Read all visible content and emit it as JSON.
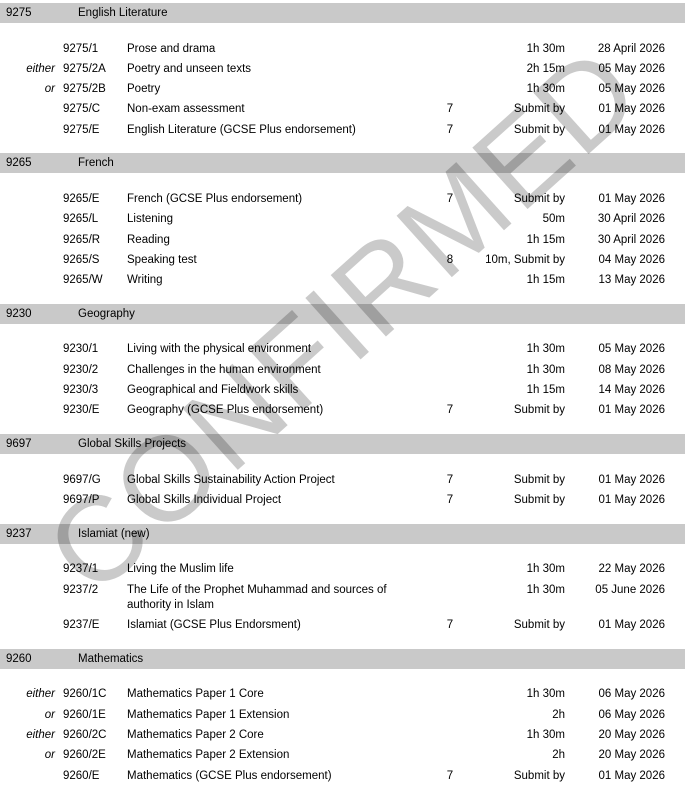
{
  "watermark": {
    "text": "CONFIRMED"
  },
  "colors": {
    "section_bar": "#c9c9c9",
    "watermark": "#cacaca",
    "text": "#000000"
  },
  "columns": {
    "prefix": "either/or",
    "code": "paper code",
    "title": "paper title",
    "count": "key/number",
    "duration": "duration or submission",
    "date": "date"
  },
  "sections": [
    {
      "code": "9275",
      "title": "English Literature",
      "rows": [
        {
          "prefix": "",
          "code": "9275/1",
          "title": "Prose and drama",
          "num": "",
          "duration": "1h 30m",
          "date": "28 April 2026"
        },
        {
          "prefix": "either",
          "code": "9275/2A",
          "title": "Poetry and unseen texts",
          "num": "",
          "duration": "2h 15m",
          "date": "05 May 2026"
        },
        {
          "prefix": "or",
          "code": "9275/2B",
          "title": "Poetry",
          "num": "",
          "duration": "1h 30m",
          "date": "05 May 2026"
        },
        {
          "prefix": "",
          "code": "9275/C",
          "title": "Non-exam assessment",
          "num": "7",
          "duration": "Submit by",
          "date": "01 May 2026"
        },
        {
          "prefix": "",
          "code": "9275/E",
          "title": "English Literature (GCSE Plus endorsement)",
          "num": "7",
          "duration": "Submit by",
          "date": "01 May 2026"
        }
      ]
    },
    {
      "code": "9265",
      "title": "French",
      "rows": [
        {
          "prefix": "",
          "code": "9265/E",
          "title": "French (GCSE Plus endorsement)",
          "num": "7",
          "duration": "Submit by",
          "date": "01 May 2026"
        },
        {
          "prefix": "",
          "code": "9265/L",
          "title": "Listening",
          "num": "",
          "duration": "50m",
          "date": "30 April 2026"
        },
        {
          "prefix": "",
          "code": "9265/R",
          "title": "Reading",
          "num": "",
          "duration": "1h 15m",
          "date": "30 April 2026"
        },
        {
          "prefix": "",
          "code": "9265/S",
          "title": "Speaking test",
          "num": "8",
          "duration": "10m, Submit by",
          "date": "04 May 2026"
        },
        {
          "prefix": "",
          "code": "9265/W",
          "title": "Writing",
          "num": "",
          "duration": "1h 15m",
          "date": "13 May 2026"
        }
      ]
    },
    {
      "code": "9230",
      "title": "Geography",
      "rows": [
        {
          "prefix": "",
          "code": "9230/1",
          "title": "Living with the physical environment",
          "num": "",
          "duration": "1h 30m",
          "date": "05 May 2026"
        },
        {
          "prefix": "",
          "code": "9230/2",
          "title": "Challenges in the human environment",
          "num": "",
          "duration": "1h 30m",
          "date": "08 May 2026"
        },
        {
          "prefix": "",
          "code": "9230/3",
          "title": "Geographical and Fieldwork skills",
          "num": "",
          "duration": "1h 15m",
          "date": "14 May 2026"
        },
        {
          "prefix": "",
          "code": "9230/E",
          "title": "Geography (GCSE Plus endorsement)",
          "num": "7",
          "duration": "Submit by",
          "date": "01 May 2026"
        }
      ]
    },
    {
      "code": "9697",
      "title": "Global Skills Projects",
      "rows": [
        {
          "prefix": "",
          "code": "9697/G",
          "title": "Global Skills Sustainability Action Project",
          "num": "7",
          "duration": "Submit by",
          "date": "01 May 2026"
        },
        {
          "prefix": "",
          "code": "9697/P",
          "title": "Global Skills Individual Project",
          "num": "7",
          "duration": "Submit by",
          "date": "01 May 2026"
        }
      ]
    },
    {
      "code": "9237",
      "title": "Islamiat (new)",
      "rows": [
        {
          "prefix": "",
          "code": "9237/1",
          "title": "Living the Muslim life",
          "num": "",
          "duration": "1h 30m",
          "date": "22 May 2026"
        },
        {
          "prefix": "",
          "code": "9237/2",
          "title": "The Life of the Prophet Muhammad and sources of authority in Islam",
          "num": "",
          "duration": "1h 30m",
          "date": "05 June 2026"
        },
        {
          "prefix": "",
          "code": "9237/E",
          "title": "Islamiat (GCSE Plus Endorsment)",
          "num": "7",
          "duration": "Submit by",
          "date": "01 May 2026"
        }
      ]
    },
    {
      "code": "9260",
      "title": "Mathematics",
      "rows": [
        {
          "prefix": "either",
          "code": "9260/1C",
          "title": "Mathematics Paper 1 Core",
          "num": "",
          "duration": "1h 30m",
          "date": "06 May 2026"
        },
        {
          "prefix": "or",
          "code": "9260/1E",
          "title": "Mathematics Paper 1 Extension",
          "num": "",
          "duration": "2h",
          "date": "06 May 2026"
        },
        {
          "prefix": "either",
          "code": "9260/2C",
          "title": "Mathematics Paper 2 Core",
          "num": "",
          "duration": "1h 30m",
          "date": "20 May 2026"
        },
        {
          "prefix": "or",
          "code": "9260/2E",
          "title": "Mathematics Paper 2 Extension",
          "num": "",
          "duration": "2h",
          "date": "20 May 2026"
        },
        {
          "prefix": "",
          "code": "9260/E",
          "title": "Mathematics (GCSE Plus endorsement)",
          "num": "7",
          "duration": "Submit by",
          "date": "01 May 2026"
        }
      ]
    }
  ]
}
